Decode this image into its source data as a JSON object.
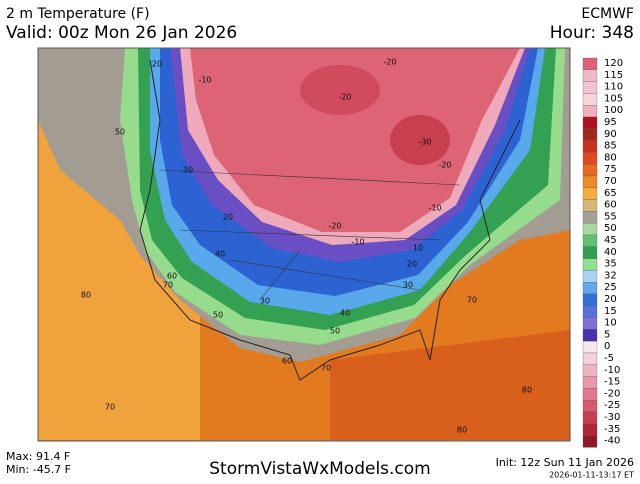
{
  "header": {
    "title": "2 m Temperature (F)",
    "valid": "Valid: 00z Mon 26 Jan 2026",
    "model": "ECMWF",
    "hour": "Hour: 348"
  },
  "colorbar": [
    {
      "label": "120",
      "color": "#e0607a"
    },
    {
      "label": "115",
      "color": "#f0b8c8"
    },
    {
      "label": "110",
      "color": "#f4c4d0"
    },
    {
      "label": "105",
      "color": "#f6d4dc"
    },
    {
      "label": "100",
      "color": "#f0b0bc"
    },
    {
      "label": "95",
      "color": "#b01020"
    },
    {
      "label": "90",
      "color": "#a02818"
    },
    {
      "label": "85",
      "color": "#c83020"
    },
    {
      "label": "80",
      "color": "#e04820"
    },
    {
      "label": "75",
      "color": "#e86a20"
    },
    {
      "label": "70",
      "color": "#ee8a28"
    },
    {
      "label": "65",
      "color": "#f4ac3c"
    },
    {
      "label": "60",
      "color": "#d8b878"
    },
    {
      "label": "55",
      "color": "#a8a098"
    },
    {
      "label": "50",
      "color": "#a8d8a0"
    },
    {
      "label": "45",
      "color": "#60c070"
    },
    {
      "label": "40",
      "color": "#30a050"
    },
    {
      "label": "35",
      "color": "#90e090"
    },
    {
      "label": "32",
      "color": "#a8d4f4"
    },
    {
      "label": "25",
      "color": "#60a8ec"
    },
    {
      "label": "20",
      "color": "#3070d8"
    },
    {
      "label": "15",
      "color": "#5870d8"
    },
    {
      "label": "10",
      "color": "#8070d8"
    },
    {
      "label": "5",
      "color": "#4830b0"
    },
    {
      "label": "0",
      "color": "#f8e8ec"
    },
    {
      "label": "-5",
      "color": "#f4d0d8"
    },
    {
      "label": "-10",
      "color": "#f0b4c0"
    },
    {
      "label": "-15",
      "color": "#e898a8"
    },
    {
      "label": "-20",
      "color": "#e07888"
    },
    {
      "label": "-25",
      "color": "#d85a6c"
    },
    {
      "label": "-30",
      "color": "#c84050"
    },
    {
      "label": "-35",
      "color": "#b02838"
    },
    {
      "label": "-40",
      "color": "#901828"
    }
  ],
  "contour_labels": [
    "-20",
    "-20",
    "-10",
    "-30",
    "-20",
    "-10",
    "-20",
    "-10",
    "10",
    "20",
    "30",
    "20",
    "30",
    "40",
    "50",
    "60",
    "70",
    "50",
    "30",
    "40",
    "50",
    "60",
    "70",
    "80",
    "70",
    "70",
    "80",
    "80",
    "20"
  ],
  "footer": {
    "max": "Max: 91.4 F",
    "min": "Min: -45.7 F",
    "site": "StormVistaWxModels.com",
    "init": "Init: 12z Sun 11 Jan 2026",
    "stamp": "2026-01-11-13:17 ET"
  }
}
